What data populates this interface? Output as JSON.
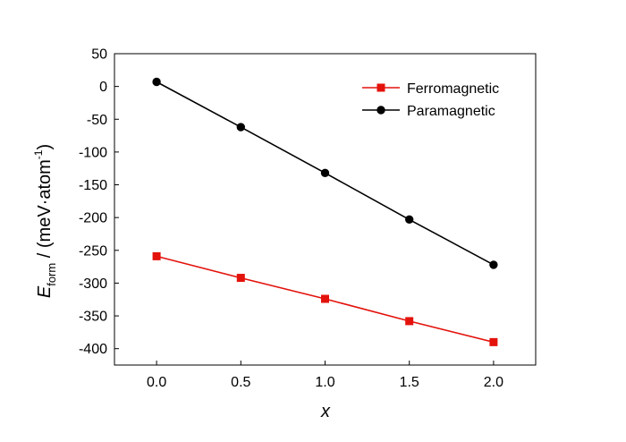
{
  "chart_data": {
    "type": "line",
    "xlabel": "x",
    "ylabel": {
      "symbol": "E",
      "subscript": "form",
      "units_prefix": " / (meV·atom",
      "units_exp": "-1",
      "units_suffix": ")"
    },
    "xlim": [
      -0.25,
      2.25
    ],
    "ylim": [
      -425,
      50
    ],
    "xticks": [
      0.0,
      0.5,
      1.0,
      1.5,
      2.0
    ],
    "xtick_labels": [
      "0.0",
      "0.5",
      "1.0",
      "1.5",
      "2.0"
    ],
    "yticks": [
      50,
      0,
      -50,
      -100,
      -150,
      -200,
      -250,
      -300,
      -350,
      -400
    ],
    "ytick_labels": [
      "50",
      "0",
      "-50",
      "-100",
      "-150",
      "-200",
      "-250",
      "-300",
      "-350",
      "-400"
    ],
    "x": [
      0.0,
      0.5,
      1.0,
      1.5,
      2.0
    ],
    "series": [
      {
        "name": "Ferromagnetic",
        "marker": "square",
        "color": "#e3120b",
        "values": [
          -259,
          -292,
          -324,
          -358,
          -390
        ]
      },
      {
        "name": "Paramagnetic",
        "marker": "circle",
        "color": "#000000",
        "values": [
          7,
          -62,
          -132,
          -203,
          -272
        ]
      }
    ],
    "legend_position": "top-right",
    "grid": false
  }
}
